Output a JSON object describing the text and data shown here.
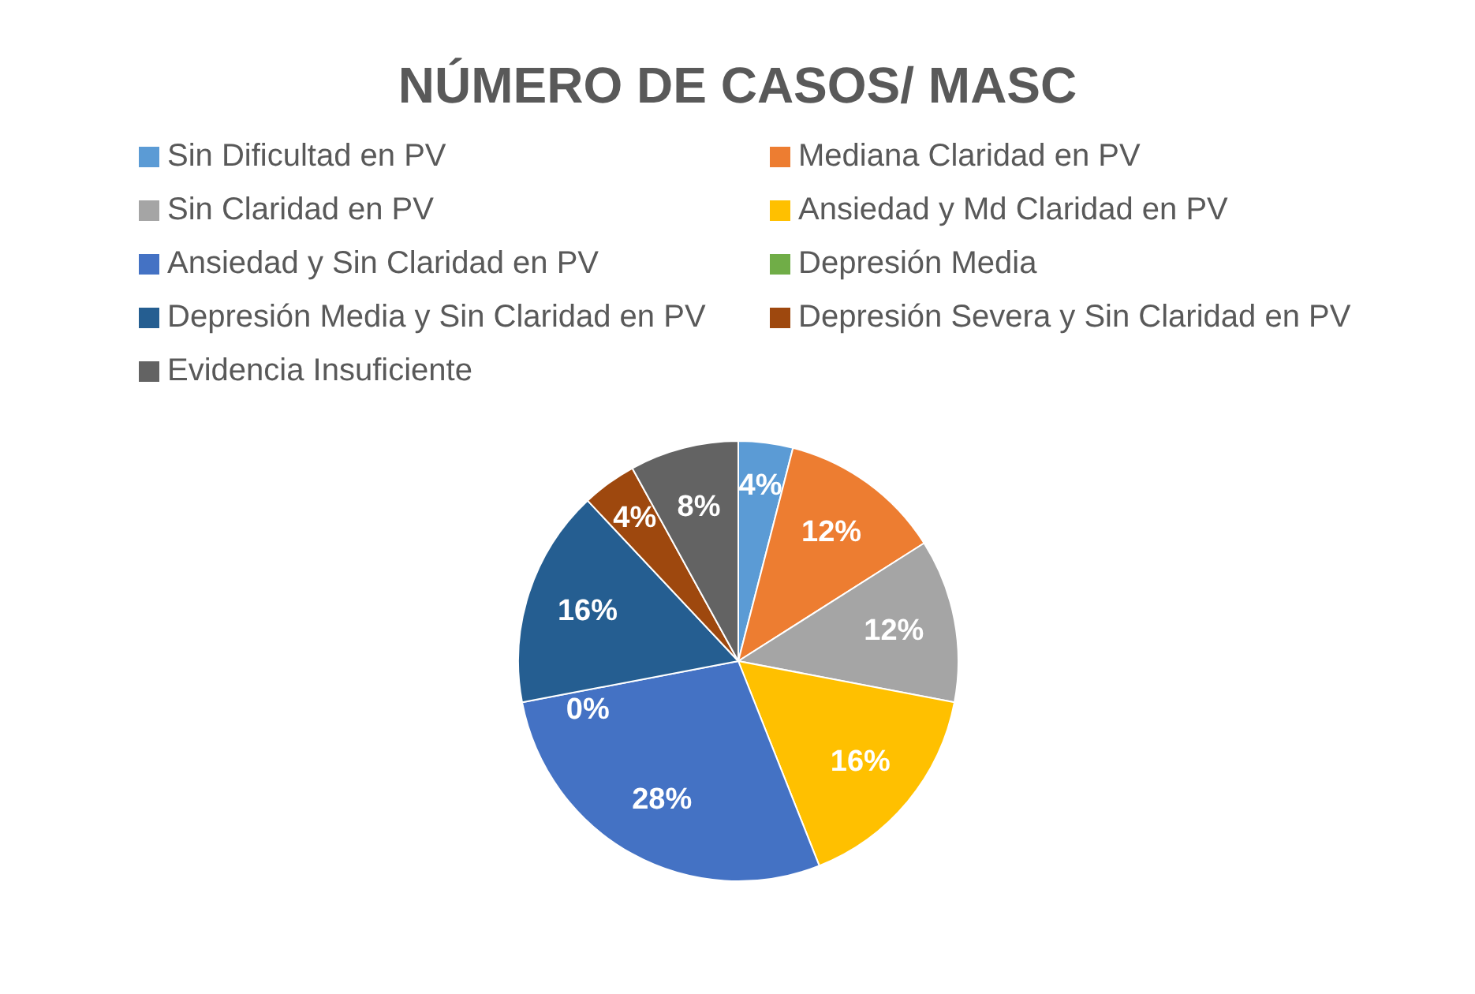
{
  "chart_data": {
    "type": "pie",
    "title": "NÚMERO DE CASOS/ MASC",
    "categories": [
      "Sin Dificultad en PV",
      "Mediana Claridad en PV",
      "Sin Claridad en PV",
      "Ansiedad y Md Claridad en PV",
      "Ansiedad y Sin Claridad en PV",
      "Depresión Media",
      "Depresión Media y Sin Claridad en PV",
      "Depresión Severa y Sin Claridad en PV",
      "Evidencia Insuficiente"
    ],
    "values": [
      4,
      12,
      12,
      16,
      28,
      0,
      16,
      4,
      8
    ],
    "value_labels": [
      "4%",
      "12%",
      "12%",
      "16%",
      "28%",
      "0%",
      "16%",
      "4%",
      "8%"
    ],
    "colors": [
      "#5b9bd5",
      "#ed7d31",
      "#a5a5a5",
      "#ffc000",
      "#4472c4",
      "#70ad47",
      "#255e91",
      "#9e480e",
      "#636363"
    ],
    "legend": "top"
  }
}
